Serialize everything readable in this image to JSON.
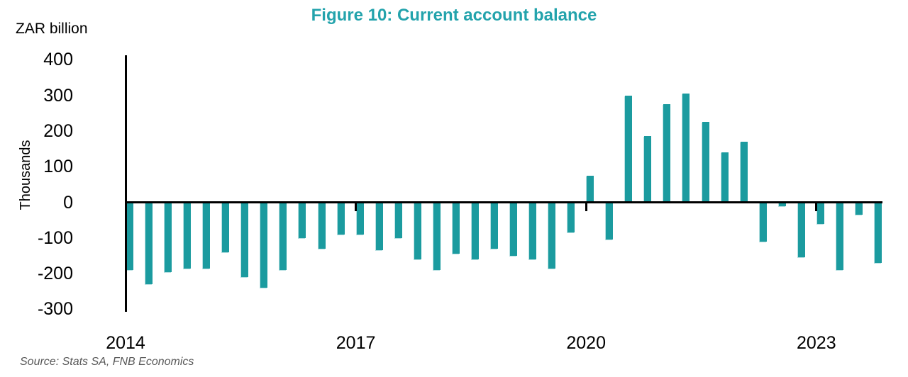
{
  "title": "Figure 10: Current account balance",
  "units_label": "ZAR billion",
  "y_axis_label": "Thousands",
  "source": "Source: Stats SA, FNB Economics",
  "colors": {
    "accent": "#23a3ac",
    "bar": "#1b9b9f",
    "axis": "#000000",
    "source_text": "#595959"
  },
  "chart_data": {
    "type": "bar",
    "title": "Figure 10: Current account balance",
    "units": "ZAR billion",
    "ylabel": "Thousands",
    "xlabel": "",
    "grid": false,
    "legend": "none",
    "ylim": [
      -306,
      414
    ],
    "y_ticks": [
      400,
      300,
      200,
      100,
      0,
      -100,
      -200,
      -300
    ],
    "x_tick_labels": [
      "2014",
      "2017",
      "2020",
      "2023"
    ],
    "x_tick_indices": [
      0,
      12,
      24,
      36
    ],
    "x": [
      "2014 Q1",
      "2014 Q2",
      "2014 Q3",
      "2014 Q4",
      "2015 Q1",
      "2015 Q2",
      "2015 Q3",
      "2015 Q4",
      "2016 Q1",
      "2016 Q2",
      "2016 Q3",
      "2016 Q4",
      "2017 Q1",
      "2017 Q2",
      "2017 Q3",
      "2017 Q4",
      "2018 Q1",
      "2018 Q2",
      "2018 Q3",
      "2018 Q4",
      "2019 Q1",
      "2019 Q2",
      "2019 Q3",
      "2019 Q4",
      "2020 Q1",
      "2020 Q2",
      "2020 Q3",
      "2020 Q4",
      "2021 Q1",
      "2021 Q2",
      "2021 Q3",
      "2021 Q4",
      "2022 Q1",
      "2022 Q2",
      "2022 Q3",
      "2022 Q4",
      "2023 Q1",
      "2023 Q2",
      "2023 Q3",
      "2023 Q4"
    ],
    "values": [
      -190,
      -230,
      -195,
      -185,
      -185,
      -140,
      -210,
      -240,
      -190,
      -100,
      -130,
      -90,
      -90,
      -135,
      -100,
      -160,
      -190,
      -145,
      -160,
      -130,
      -150,
      -160,
      -185,
      -85,
      75,
      -105,
      300,
      185,
      275,
      305,
      225,
      140,
      170,
      -110,
      -10,
      -155,
      -60,
      -190,
      -35,
      -170
    ]
  }
}
